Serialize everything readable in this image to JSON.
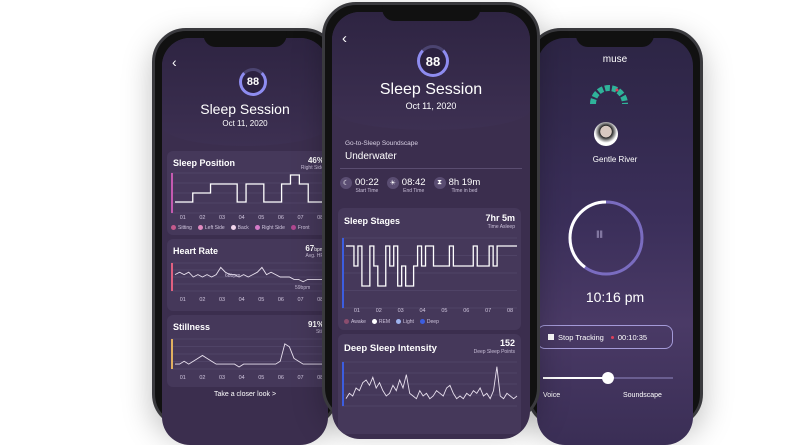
{
  "left_phone": {
    "back": "‹",
    "score": "88",
    "title": "Sleep Session",
    "date": "Oct 11, 2020",
    "sleep_position": {
      "title": "Sleep Position",
      "value": "46%",
      "sub": "Right Side",
      "series": [
        1,
        1,
        2,
        2,
        3,
        3,
        3,
        1,
        3,
        3,
        1,
        1,
        3,
        4,
        3,
        1,
        1
      ],
      "legend": [
        {
          "label": "Sitting",
          "color": "#c45a8c"
        },
        {
          "label": "Left Side",
          "color": "#e08ac0"
        },
        {
          "label": "Back",
          "color": "#f2d6ec"
        },
        {
          "label": "Right Side",
          "color": "#d57ac8"
        },
        {
          "label": "Front",
          "color": "#b04890"
        }
      ]
    },
    "heart_rate": {
      "title": "Heart Rate",
      "value": "67",
      "unit": "bpm",
      "sub": "Avg. HR",
      "annot_low": "59bpm",
      "annot_mid": "68bpm",
      "series": [
        6,
        7,
        6,
        7,
        5,
        6,
        5,
        6,
        5,
        6,
        9,
        7,
        6,
        6,
        5,
        6,
        5,
        6,
        7,
        9,
        6,
        7,
        6,
        5,
        5,
        5,
        4,
        4,
        3,
        4,
        4,
        4,
        4,
        4
      ]
    },
    "stillness": {
      "title": "Stillness",
      "value": "91%",
      "sub": "Still",
      "series": [
        1,
        1,
        2,
        1,
        2,
        3,
        4,
        3,
        2,
        1,
        1,
        1,
        1,
        1,
        0,
        1,
        1,
        1,
        1,
        1,
        1,
        1,
        1,
        2,
        8,
        7,
        3,
        2,
        1,
        1,
        1,
        1,
        1,
        1
      ]
    },
    "ticks": [
      "01",
      "02",
      "03",
      "04",
      "05",
      "06",
      "07",
      "08"
    ],
    "closer_look": "Take a closer look >"
  },
  "middle_phone": {
    "back": "‹",
    "score": "88",
    "title": "Sleep Session",
    "date": "Oct 11, 2020",
    "soundscape_label": "Go-to-Sleep Soundscape",
    "soundscape": "Underwater",
    "times": [
      {
        "icon": "moon-icon",
        "value": "00:22",
        "label": "Start Time"
      },
      {
        "icon": "sun-icon",
        "value": "08:42",
        "label": "End Time"
      },
      {
        "icon": "hourglass-icon",
        "value": "8h 19m",
        "label": "Time in bed"
      }
    ],
    "sleep_stages": {
      "title": "Sleep Stages",
      "value": "7hr 5m",
      "sub": "Time Asleep",
      "series": [
        3,
        3,
        2,
        3,
        1,
        1,
        3,
        2,
        1,
        1,
        3,
        2,
        3,
        1,
        2,
        1,
        1,
        2,
        3,
        2,
        3,
        3,
        2,
        2,
        2,
        2,
        3,
        2,
        2,
        2,
        2,
        2,
        3,
        2,
        2,
        2,
        3,
        2,
        3,
        3,
        3,
        3,
        3
      ],
      "legend": [
        {
          "label": "Awake",
          "color": "#8a4d6e"
        },
        {
          "label": "REM",
          "color": "#ffffff"
        },
        {
          "label": "Light",
          "color": "#9fb4f0"
        },
        {
          "label": "Deep",
          "color": "#3c5de0"
        }
      ]
    },
    "deep_sleep": {
      "title": "Deep Sleep Intensity",
      "value": "152",
      "sub": "Deep Sleep Points",
      "series": [
        2,
        4,
        3,
        6,
        5,
        8,
        9,
        7,
        10,
        6,
        8,
        5,
        3,
        4,
        7,
        5,
        9,
        6,
        11,
        4,
        3,
        2,
        5,
        3,
        4,
        2,
        3,
        5,
        4,
        3,
        6,
        7,
        4,
        2,
        3,
        2,
        4,
        3,
        5,
        4,
        6,
        3,
        4,
        2,
        5,
        14,
        3,
        2,
        4,
        3,
        2,
        3
      ]
    },
    "ticks": [
      "01",
      "02",
      "03",
      "04",
      "05",
      "06",
      "07",
      "08"
    ]
  },
  "right_phone": {
    "brand": "muse",
    "artist": "Gentle River",
    "time": "10:16 pm",
    "stop_label": "Stop Tracking",
    "elapsed": "00:10:35",
    "slider_value": 0.5,
    "slider_left": "Voice",
    "slider_right": "Soundscape",
    "timer_progress": 0.6
  },
  "colors": {
    "screen": "#3b2e4e",
    "card": "#45385a",
    "accent": "#8e8cf0",
    "tracking_dot": "#e0405a"
  }
}
